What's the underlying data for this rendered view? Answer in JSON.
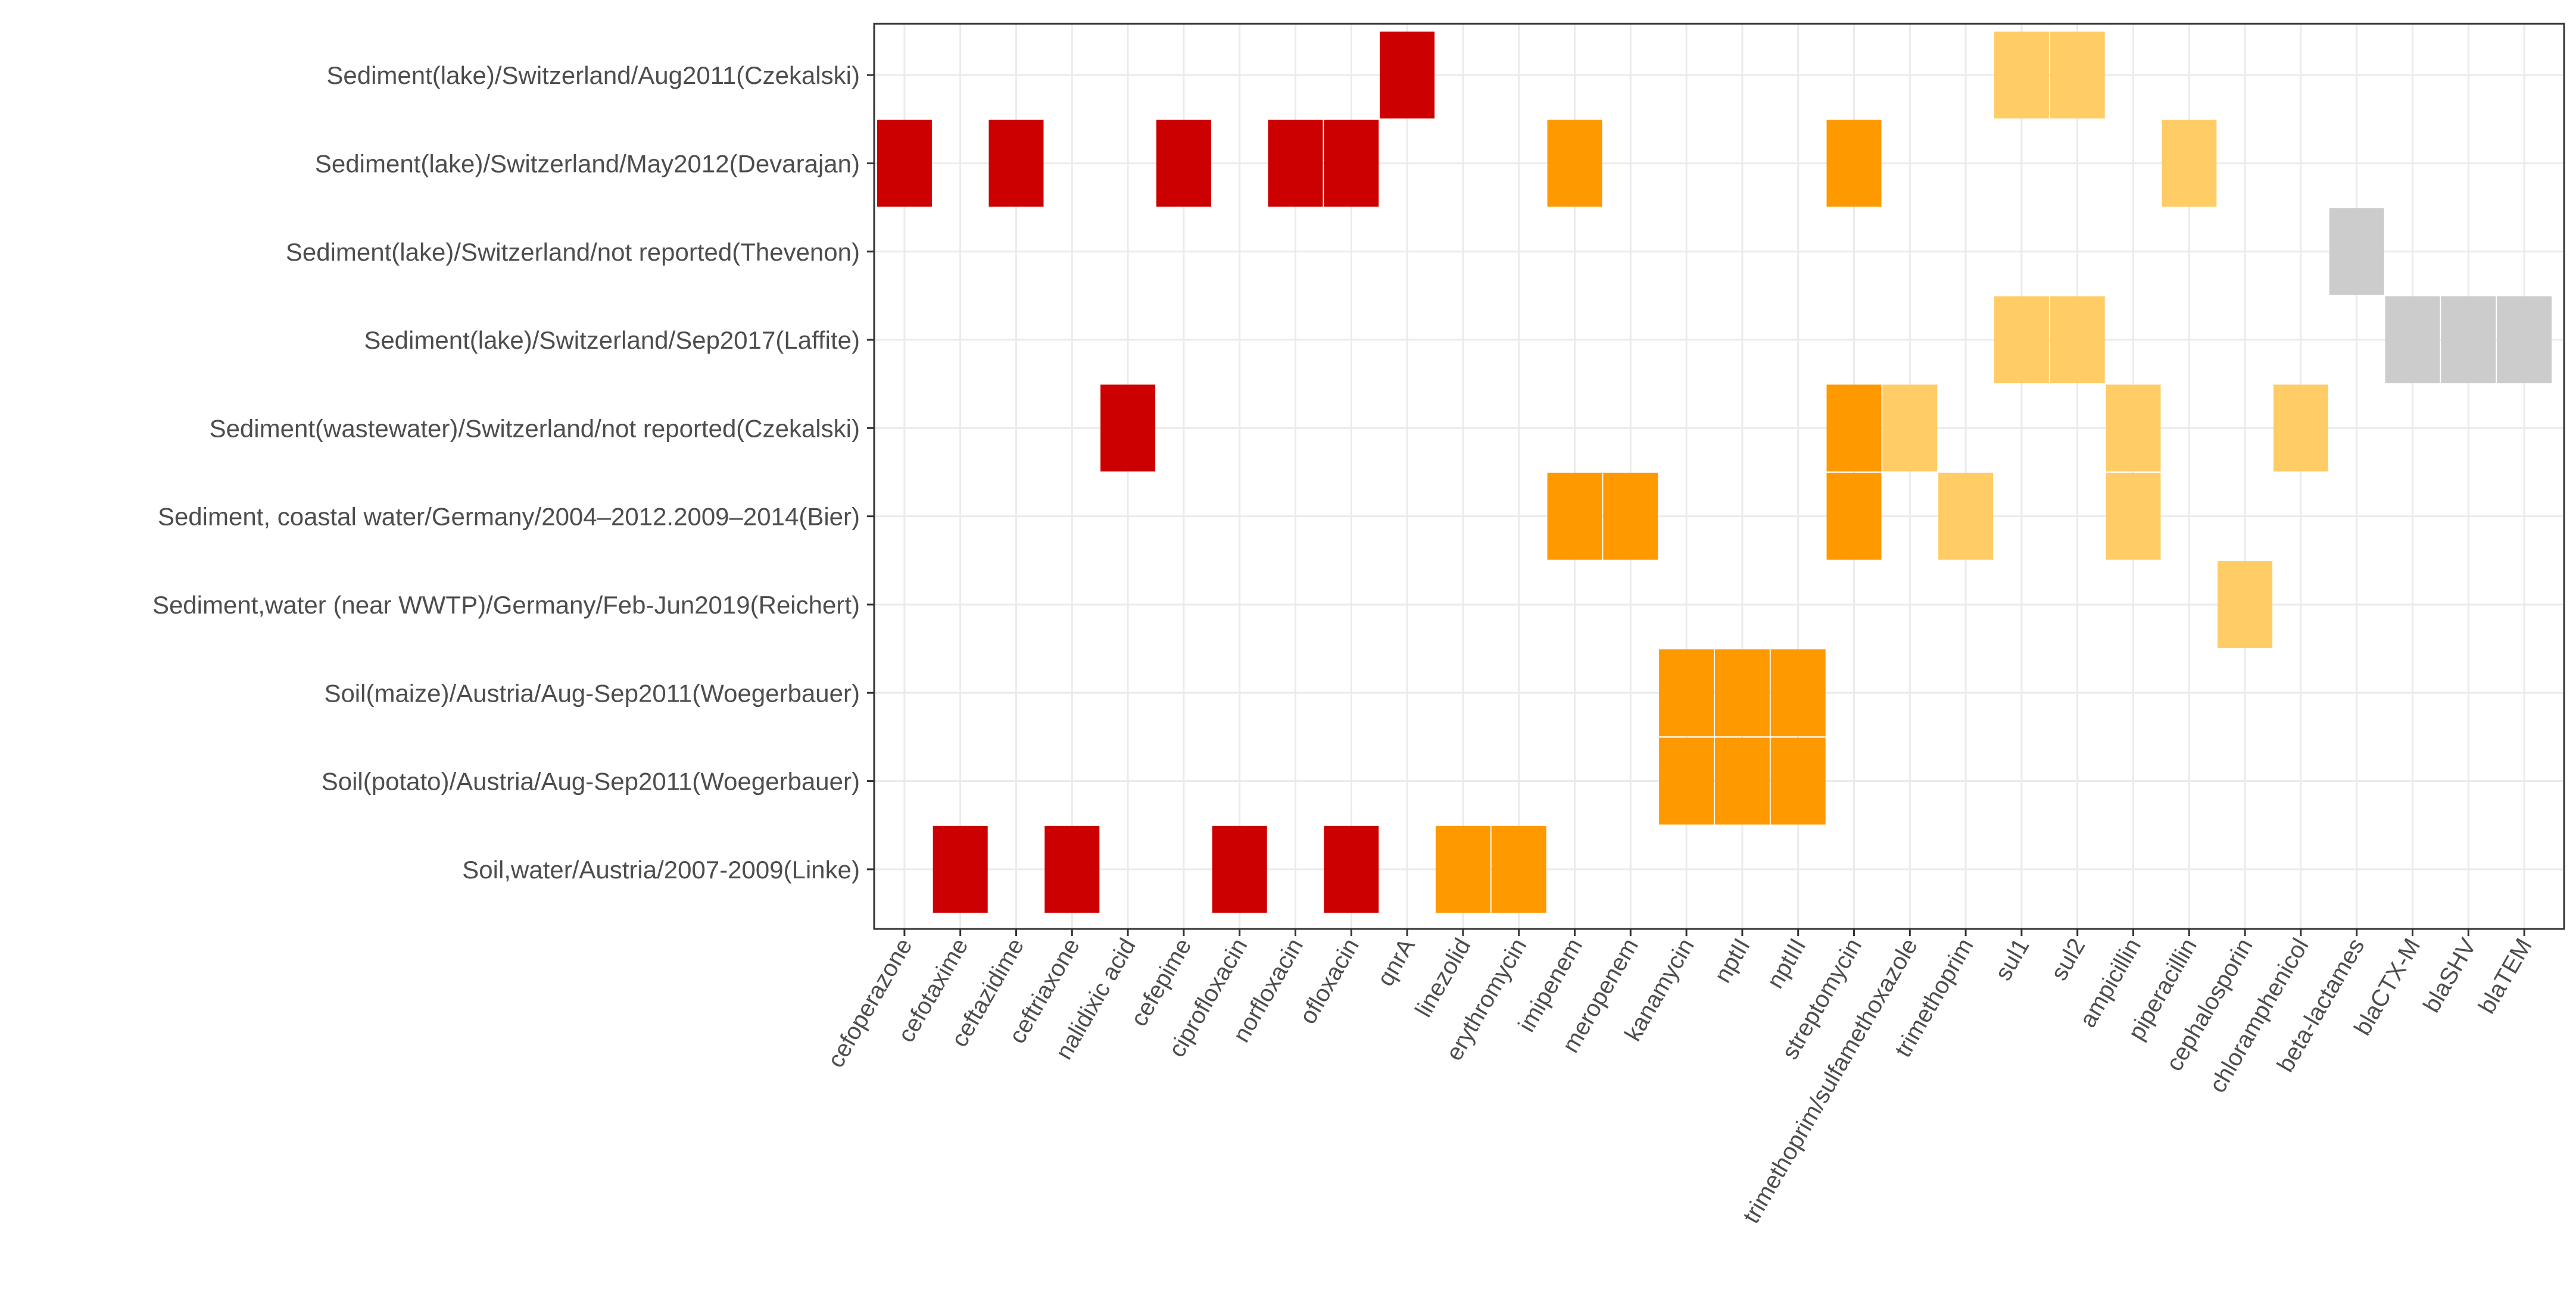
{
  "chart_data": {
    "type": "heatmap",
    "title": "",
    "xlabel": "",
    "ylabel": "",
    "legend": "none",
    "grid": true,
    "colors": {
      "dark_red": "#CC0000",
      "orange": "#FF9900",
      "light_orange": "#FFCC66",
      "gray": "#CCCCCC",
      "panel_border": "#333333",
      "grid": "#EBEBEB",
      "tick_label": "#4D4D4D"
    },
    "x_categories": [
      "cefoperazone",
      "cefotaxime",
      "ceftazidime",
      "ceftriaxone",
      "nalidixic acid",
      "cefepime",
      "ciprofloxacin",
      "norfloxacin",
      "ofloxacin",
      "qnrA",
      "linezolid",
      "erythromycin",
      "imipenem",
      "meropenem",
      "kanamycin",
      "nptII",
      "nptIII",
      "streptomycin",
      "trimethoprim/sulfamethoxazole",
      "trimethoprim",
      "sul1",
      "sul2",
      "ampicillin",
      "piperacillin",
      "cephalosporin",
      "chloramphenicol",
      "beta-lactames",
      "blaCTX-M",
      "blaSHV",
      "blaTEM"
    ],
    "y_categories": [
      "Sediment(lake)/Switzerland/Aug2011(Czekalski)",
      "Sediment(lake)/Switzerland/May2012(Devarajan)",
      "Sediment(lake)/Switzerland/not reported(Thevenon)",
      "Sediment(lake)/Switzerland/Sep2017(Laffite)",
      "Sediment(wastewater)/Switzerland/not reported(Czekalski)",
      "Sediment, coastal water/Germany/2004–2012.2009–2014(Bier)",
      "Sediment,water (near WWTP)/Germany/Feb-Jun2019(Reichert)",
      "Soil(maize)/Austria/Aug-Sep2011(Woegerbauer)",
      "Soil(potato)/Austria/Aug-Sep2011(Woegerbauer)",
      "Soil,water/Austria/2007-2009(Linke)"
    ],
    "cells": [
      {
        "x": "qnrA",
        "y": 0,
        "color": "dark_red"
      },
      {
        "x": "sul1",
        "y": 0,
        "color": "light_orange"
      },
      {
        "x": "sul2",
        "y": 0,
        "color": "light_orange"
      },
      {
        "x": "cefoperazone",
        "y": 1,
        "color": "dark_red"
      },
      {
        "x": "ceftazidime",
        "y": 1,
        "color": "dark_red"
      },
      {
        "x": "cefepime",
        "y": 1,
        "color": "dark_red"
      },
      {
        "x": "norfloxacin",
        "y": 1,
        "color": "dark_red"
      },
      {
        "x": "ofloxacin",
        "y": 1,
        "color": "dark_red"
      },
      {
        "x": "imipenem",
        "y": 1,
        "color": "orange"
      },
      {
        "x": "streptomycin",
        "y": 1,
        "color": "orange"
      },
      {
        "x": "piperacillin",
        "y": 1,
        "color": "light_orange"
      },
      {
        "x": "beta-lactames",
        "y": 2,
        "color": "gray"
      },
      {
        "x": "sul1",
        "y": 3,
        "color": "light_orange"
      },
      {
        "x": "sul2",
        "y": 3,
        "color": "light_orange"
      },
      {
        "x": "blaCTX-M",
        "y": 3,
        "color": "gray"
      },
      {
        "x": "blaSHV",
        "y": 3,
        "color": "gray"
      },
      {
        "x": "blaTEM",
        "y": 3,
        "color": "gray"
      },
      {
        "x": "nalidixic acid",
        "y": 4,
        "color": "dark_red"
      },
      {
        "x": "streptomycin",
        "y": 4,
        "color": "orange"
      },
      {
        "x": "trimethoprim/sulfamethoxazole",
        "y": 4,
        "color": "light_orange"
      },
      {
        "x": "ampicillin",
        "y": 4,
        "color": "light_orange"
      },
      {
        "x": "chloramphenicol",
        "y": 4,
        "color": "light_orange"
      },
      {
        "x": "imipenem",
        "y": 5,
        "color": "orange"
      },
      {
        "x": "meropenem",
        "y": 5,
        "color": "orange"
      },
      {
        "x": "streptomycin",
        "y": 5,
        "color": "orange"
      },
      {
        "x": "trimethoprim",
        "y": 5,
        "color": "light_orange"
      },
      {
        "x": "ampicillin",
        "y": 5,
        "color": "light_orange"
      },
      {
        "x": "cephalosporin",
        "y": 6,
        "color": "light_orange"
      },
      {
        "x": "kanamycin",
        "y": 7,
        "color": "orange"
      },
      {
        "x": "nptII",
        "y": 7,
        "color": "orange"
      },
      {
        "x": "nptIII",
        "y": 7,
        "color": "orange"
      },
      {
        "x": "kanamycin",
        "y": 8,
        "color": "orange"
      },
      {
        "x": "nptII",
        "y": 8,
        "color": "orange"
      },
      {
        "x": "nptIII",
        "y": 8,
        "color": "orange"
      },
      {
        "x": "cefotaxime",
        "y": 9,
        "color": "dark_red"
      },
      {
        "x": "ceftriaxone",
        "y": 9,
        "color": "dark_red"
      },
      {
        "x": "ciprofloxacin",
        "y": 9,
        "color": "dark_red"
      },
      {
        "x": "ofloxacin",
        "y": 9,
        "color": "dark_red"
      },
      {
        "x": "linezolid",
        "y": 9,
        "color": "orange"
      },
      {
        "x": "erythromycin",
        "y": 9,
        "color": "orange"
      }
    ]
  }
}
